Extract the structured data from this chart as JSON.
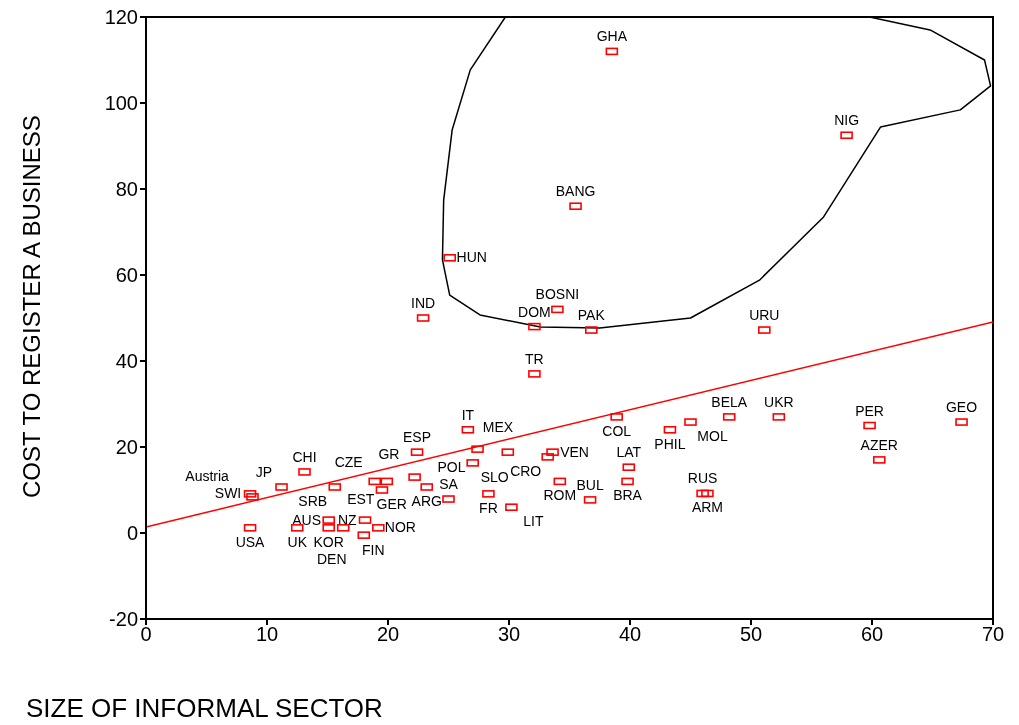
{
  "chart_data": {
    "type": "scatter",
    "xlabel": "SIZE OF INFORMAL SECTOR",
    "ylabel": "COST TO REGISTER A BUSINESS",
    "xlim": [
      0,
      70
    ],
    "xticks": [
      0,
      10,
      20,
      30,
      40,
      50,
      60,
      70
    ],
    "ylim": [
      -20,
      120
    ],
    "yticks": [
      -20,
      0,
      20,
      40,
      60,
      80,
      100,
      120
    ],
    "marker": "square",
    "grid": false,
    "legend": false,
    "series": [
      {
        "color": "#ff0000",
        "x": [
          38.5,
          57.9,
          35.5,
          25.1,
          22.9,
          34.0,
          32.1,
          36.8,
          51.1,
          32.1,
          38.9,
          43.3,
          45.0,
          48.2,
          52.3,
          59.8,
          60.6,
          67.4,
          46.0,
          46.4,
          39.9,
          39.8,
          34.2,
          36.7,
          33.6,
          33.2,
          29.9,
          26.6,
          27.4,
          27.0,
          28.3,
          30.2,
          23.2,
          25.0,
          22.4,
          22.2,
          18.9,
          19.9,
          19.5,
          15.6,
          13.1,
          11.2,
          8.6,
          8.8,
          8.6,
          12.5,
          15.1,
          16.3,
          15.1,
          18.0,
          19.2,
          18.1
        ],
        "values": [
          112,
          92.5,
          76,
          64,
          50,
          52,
          48,
          47.2,
          47.2,
          37,
          27,
          24,
          25.8,
          27,
          27,
          25,
          17,
          25.8,
          9.2,
          9.2,
          15.3,
          12,
          12,
          7.7,
          18.8,
          17.7,
          18.8,
          24,
          19.5,
          16.3,
          9.1,
          6,
          10.7,
          7.9,
          18.8,
          13,
          12,
          12,
          10,
          10.7,
          14.2,
          10.7,
          9.1,
          8.4,
          1.2,
          1.2,
          1.2,
          1.2,
          3,
          -0.5,
          1.2,
          3
        ],
        "value_labels": [
          "GHA",
          "NIG",
          "BANG",
          "HUN",
          "IND",
          "BOSNI",
          "DOM",
          "PAK",
          "URU",
          "TR",
          "COL",
          "PHIL",
          "MOL",
          "BELA",
          "UKR",
          "PER",
          "AZER",
          "GEO",
          "RUS",
          "ARM",
          "LAT",
          "BRA",
          "ROM",
          "BUL",
          "VEN",
          "CRO",
          "MEX",
          "IT",
          "POL",
          "SLO",
          "FR",
          "LIT",
          "ARG",
          "SA",
          "ESP",
          "GR",
          "CZE",
          "EST",
          "GER",
          "SRB",
          "CHI",
          "JP",
          "SWI",
          "Austria",
          "USA",
          "UK",
          "KOR",
          "FIN",
          "AUS",
          "DEN",
          "NOR",
          "NZ"
        ]
      },
      {
        "type": "line",
        "marker": "none",
        "color": "#ff0000",
        "x": [
          0,
          70
        ],
        "values": [
          1.4,
          49.1
        ]
      },
      {
        "type": "line",
        "marker": "none",
        "color": "#000000",
        "x": [
          59.8,
          64.8,
          69.3,
          69.8,
          67.3,
          60.7,
          56.0,
          50.7,
          45.0,
          37.5,
          32.6,
          27.6,
          25.1,
          24.5,
          24.6,
          25.3,
          26.8,
          29.7
        ],
        "values": [
          120,
          117,
          110,
          104,
          98.4,
          94.4,
          73.5,
          58.8,
          50,
          47.7,
          47.9,
          50.7,
          55.3,
          63.5,
          77.4,
          93.7,
          107.7,
          120
        ]
      }
    ]
  }
}
